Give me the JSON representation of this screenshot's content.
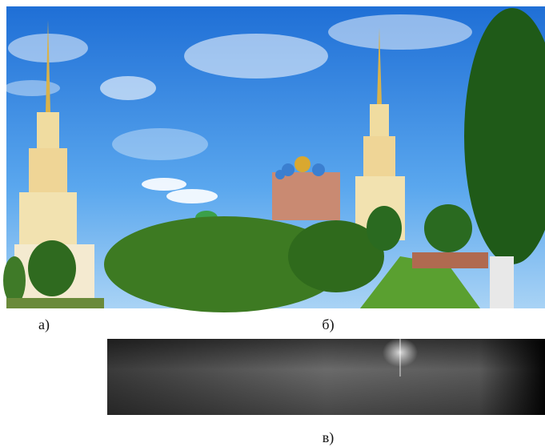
{
  "figure": {
    "panels": [
      {
        "label": "а)"
      },
      {
        "label": "б)"
      },
      {
        "label": "в)"
      }
    ]
  }
}
